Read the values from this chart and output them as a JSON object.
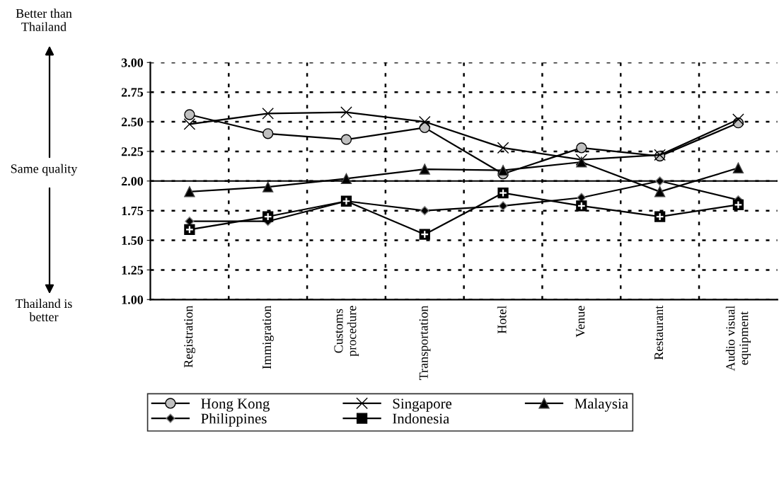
{
  "chart_data": {
    "type": "line",
    "categories": [
      "Registration",
      "Immigration",
      "Customs\nprocedure",
      "Transportation",
      "Hotel",
      "Venue",
      "Restaurant",
      "Audio visual\nequipment"
    ],
    "series": [
      {
        "name": "Hong Kong",
        "color": "#000000",
        "marker": "circle",
        "values": [
          2.56,
          2.4,
          2.35,
          2.45,
          2.06,
          2.28,
          2.21,
          2.49
        ]
      },
      {
        "name": "Singapore",
        "color": "#000000",
        "marker": "cross",
        "values": [
          2.48,
          2.57,
          2.58,
          2.5,
          2.28,
          2.18,
          2.22,
          2.52
        ]
      },
      {
        "name": "Malaysia",
        "color": "#000000",
        "marker": "triangle",
        "values": [
          1.91,
          1.95,
          2.02,
          2.1,
          2.09,
          2.16,
          1.91,
          2.11
        ]
      },
      {
        "name": "Philippines",
        "color": "#000000",
        "marker": "diamond",
        "values": [
          1.66,
          1.66,
          1.83,
          1.75,
          1.79,
          1.86,
          2.0,
          1.84
        ]
      },
      {
        "name": "Indonesia",
        "color": "#000000",
        "marker": "square",
        "values": [
          1.59,
          1.7,
          1.83,
          1.55,
          1.9,
          1.79,
          1.7,
          1.8
        ]
      }
    ],
    "ylim": [
      1.0,
      3.0
    ],
    "yticks": [
      {
        "value": 1.0,
        "label": "1.00"
      },
      {
        "value": 1.25,
        "label": "1.25"
      },
      {
        "value": 1.5,
        "label": "1.50"
      },
      {
        "value": 1.75,
        "label": "1.75"
      },
      {
        "value": 2.0,
        "label": "2.00"
      },
      {
        "value": 2.25,
        "label": "2.25"
      },
      {
        "value": 2.5,
        "label": "2.50"
      },
      {
        "value": 2.75,
        "label": "2.75"
      },
      {
        "value": 3.0,
        "label": "3.00"
      }
    ],
    "ref_lines": [
      {
        "axis": "y",
        "value": 2.0,
        "color": "#000000",
        "line_style": "solid"
      }
    ],
    "annotations": [
      "Better than\nThailand",
      "Same quality",
      "Thailand is\nbetter"
    ],
    "grid": true,
    "legend": "bottom",
    "line_style": "solid"
  }
}
